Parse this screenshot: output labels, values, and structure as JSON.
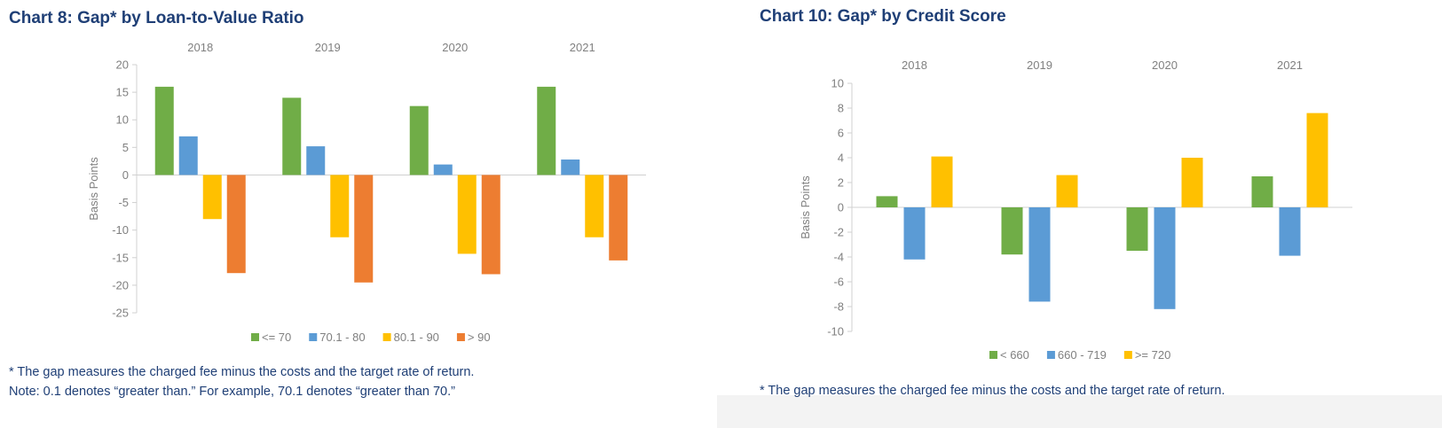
{
  "colors": {
    "title": "#1f3f76",
    "axis_text": "#808080",
    "axis_line": "#d0d0d0"
  },
  "charts": [
    {
      "title": "Chart 8: Gap* by Loan-to-Value Ratio",
      "footnotes": [
        "* The gap measures the charged fee minus the costs and the target rate of return.",
        "Note: 0.1 denotes “greater than.” For example, 70.1 denotes “greater than 70.”"
      ]
    },
    {
      "title": "Chart 10: Gap* by Credit Score",
      "footnotes": [
        "* The gap measures the charged fee minus the costs and the target rate of return."
      ]
    }
  ],
  "chart_data": [
    {
      "type": "bar",
      "title": "Chart 8: Gap* by Loan-to-Value Ratio",
      "categories": [
        "2018",
        "2019",
        "2020",
        "2021"
      ],
      "xlabel": "",
      "ylabel": "Basis Points",
      "ylim": [
        -25,
        20
      ],
      "yticks": [
        20,
        15,
        10,
        5,
        0,
        -5,
        -10,
        -15,
        -20,
        -25
      ],
      "grid": false,
      "legend_position": "bottom",
      "series": [
        {
          "name": "<= 70",
          "color": "#70ad47",
          "values": [
            16,
            14,
            12.5,
            16
          ]
        },
        {
          "name": "70.1 - 80",
          "color": "#5b9bd5",
          "values": [
            7,
            5.2,
            1.9,
            2.8
          ]
        },
        {
          "name": "80.1 - 90",
          "color": "#ffc000",
          "values": [
            -8,
            -11.3,
            -14.3,
            -11.3
          ]
        },
        {
          "name": "> 90",
          "color": "#ed7d31",
          "values": [
            -17.8,
            -19.5,
            -18,
            -15.5
          ]
        }
      ]
    },
    {
      "type": "bar",
      "title": "Chart 10: Gap* by Credit Score",
      "categories": [
        "2018",
        "2019",
        "2020",
        "2021"
      ],
      "xlabel": "",
      "ylabel": "Basis Points",
      "ylim": [
        -10,
        10
      ],
      "yticks": [
        10,
        8,
        6,
        4,
        2,
        0,
        -2,
        -4,
        -6,
        -8,
        -10
      ],
      "grid": false,
      "legend_position": "bottom",
      "series": [
        {
          "name": "< 660",
          "color": "#70ad47",
          "values": [
            0.9,
            -3.8,
            -3.5,
            2.5
          ]
        },
        {
          "name": "660 - 719",
          "color": "#5b9bd5",
          "values": [
            -4.2,
            -7.6,
            -8.2,
            -3.9
          ]
        },
        {
          "name": ">= 720",
          "color": "#ffc000",
          "values": [
            4.1,
            2.6,
            4.0,
            7.6
          ]
        }
      ]
    }
  ]
}
